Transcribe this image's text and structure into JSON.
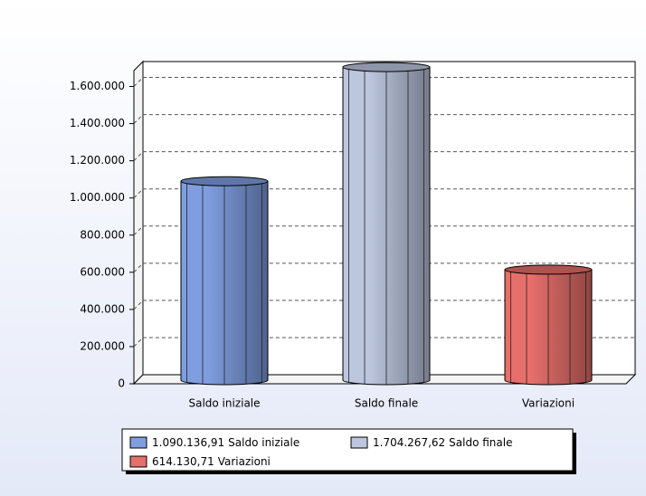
{
  "chart_data": {
    "type": "bar",
    "categories": [
      "Saldo iniziale",
      "Saldo finale",
      "Variazioni"
    ],
    "values": [
      1090136.91,
      1704267.62,
      614130.71
    ],
    "value_labels": [
      "1.090.136,91",
      "1.704.267,62",
      "614.130,71"
    ],
    "colors": [
      "#7f9ee0",
      "#bcc6de",
      "#e66f6b"
    ],
    "ylim": [
      0,
      1700000
    ],
    "yticks": [
      0,
      {
        "value": 200000,
        "label": "200.000"
      },
      {
        "value": 400000,
        "label": "400.000"
      },
      {
        "value": 600000,
        "label": "600.000"
      },
      {
        "value": 800000,
        "label": "800.000"
      },
      {
        "value": 1000000,
        "label": "1.000.000"
      },
      {
        "value": 1200000,
        "label": "1.200.000"
      },
      {
        "value": 1400000,
        "label": "1.400.000"
      },
      {
        "value": 1600000,
        "label": "1.600.000"
      }
    ],
    "grid": true
  }
}
